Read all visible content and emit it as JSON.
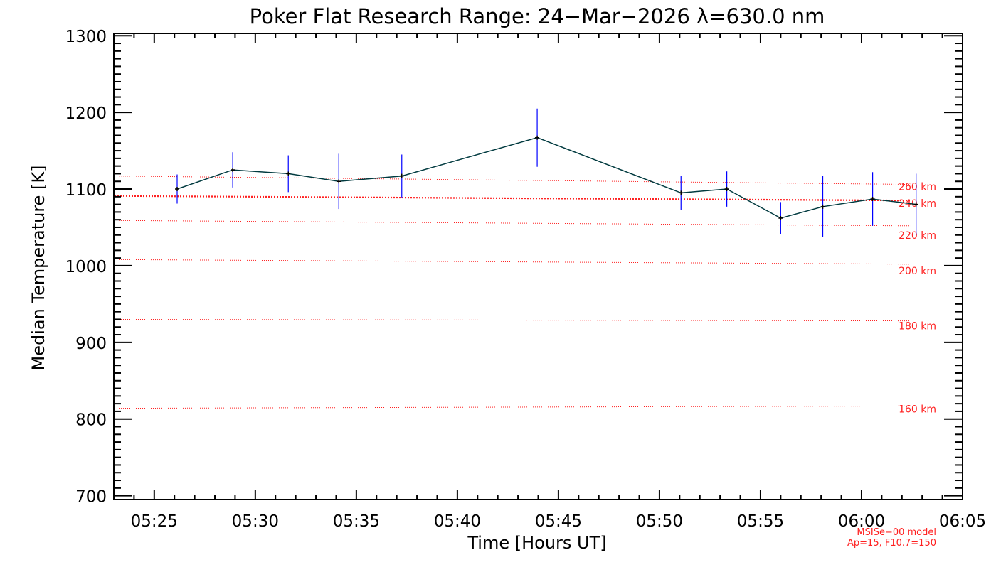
{
  "chart_data": {
    "type": "line",
    "title": "Poker Flat Research Range: 24−Mar−2026 λ=630.0 nm",
    "xlabel": "Time [Hours UT]",
    "ylabel": "Median Temperature [K]",
    "xlim": [
      "05:23",
      "06:05"
    ],
    "ylim": [
      695,
      1303
    ],
    "x_ticks": [
      "05:25",
      "05:30",
      "05:35",
      "05:40",
      "05:45",
      "05:50",
      "05:55",
      "06:00",
      "06:05"
    ],
    "y_ticks": [
      700,
      800,
      900,
      1000,
      1100,
      1200,
      1300
    ],
    "grid": false,
    "series": [
      {
        "points": [
          {
            "t": "05:26:08",
            "y": 1100,
            "err": 19
          },
          {
            "t": "05:28:53",
            "y": 1125,
            "err": 23
          },
          {
            "t": "05:31:38",
            "y": 1120,
            "err": 24
          },
          {
            "t": "05:34:08",
            "y": 1110,
            "err": 36
          },
          {
            "t": "05:37:15",
            "y": 1117,
            "err": 28
          },
          {
            "t": "05:43:57",
            "y": 1167,
            "err": 38
          },
          {
            "t": "05:51:04",
            "y": 1095,
            "err": 22
          },
          {
            "t": "05:53:20",
            "y": 1100,
            "err": 23
          },
          {
            "t": "05:56:00",
            "y": 1062,
            "err": 21
          },
          {
            "t": "05:58:05",
            "y": 1077,
            "err": 40
          },
          {
            "t": "06:00:33",
            "y": 1087,
            "err": 35
          },
          {
            "t": "06:02:42",
            "y": 1080,
            "err": 40
          }
        ],
        "line_color": "#003a3f",
        "error_color": "#0000ff"
      }
    ],
    "model_curves": [
      {
        "label": "260 km",
        "y_start": 1117,
        "y_end": 1106,
        "style": "dotted"
      },
      {
        "label": "240 km",
        "y_start": 1091,
        "y_end": 1085,
        "style": "dotted-bold"
      },
      {
        "label": "220 km",
        "y_start": 1059,
        "y_end": 1052,
        "style": "dotted"
      },
      {
        "label": "200 km",
        "y_start": 1008,
        "y_end": 1002,
        "style": "dotted"
      },
      {
        "label": "180 km",
        "y_start": 930,
        "y_end": 928,
        "style": "dotted"
      },
      {
        "label": "160 km",
        "y_start": 814,
        "y_end": 817,
        "style": "dotted"
      }
    ],
    "model_color": "#ff2020",
    "model_note": [
      "MSISe−00 model",
      "Ap=15, F10.7=150"
    ]
  }
}
